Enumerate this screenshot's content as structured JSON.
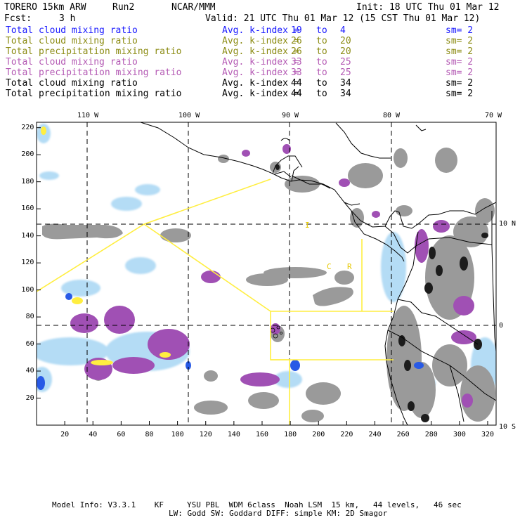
{
  "header": {
    "model": "TORERO",
    "resolution": "15km ARW",
    "run": "Run2",
    "org": "NCAR/MMM",
    "init": "Init: 18 UTC Thu 01 Mar 12",
    "fcst_label": "Fcst:",
    "fcst_value": "3 h",
    "valid": "Valid: 21 UTC Thu 01 Mar 12 (15 CST Thu 01 Mar 12)"
  },
  "legend": [
    {
      "name": "Total cloud mixing ratio",
      "avg": "Avg. k-index =",
      "a": "19",
      "to": "to",
      "b": "4",
      "sm": "sm= 2",
      "color": "#1a1aff"
    },
    {
      "name": "Total cloud mixing ratio",
      "avg": "Avg. k-index =",
      "a": "26",
      "to": "to",
      "b": "20",
      "sm": "sm= 2",
      "color": "#8c8c14"
    },
    {
      "name": "Total precipitation mixing ratio",
      "avg": "Avg. k-index =",
      "a": "26",
      "to": "to",
      "b": "20",
      "sm": "sm= 2",
      "color": "#8c8c14"
    },
    {
      "name": "Total cloud mixing ratio",
      "avg": "Avg. k-index =",
      "a": "33",
      "to": "to",
      "b": "25",
      "sm": "sm= 2",
      "color": "#b45ab4"
    },
    {
      "name": "Total precipitation mixing ratio",
      "avg": "Avg. k-index =",
      "a": "33",
      "to": "to",
      "b": "25",
      "sm": "sm= 2",
      "color": "#b45ab4"
    },
    {
      "name": "Total cloud mixing ratio",
      "avg": "Avg. k-index =",
      "a": "44",
      "to": "to",
      "b": "34",
      "sm": "sm= 2",
      "color": "#000000"
    },
    {
      "name": "Total precipitation mixing ratio",
      "avg": "Avg. k-index =",
      "a": "44",
      "to": "to",
      "b": "34",
      "sm": "sm= 2",
      "color": "#000000"
    }
  ],
  "map": {
    "lon_labels": [
      "110 W",
      "100 W",
      "90 W",
      "80 W",
      "70 W"
    ],
    "lat_labels": [
      "10 N",
      "0",
      "10 S"
    ],
    "x_ticks": [
      "20",
      "40",
      "60",
      "80",
      "100",
      "120",
      "140",
      "160",
      "180",
      "200",
      "220",
      "240",
      "260",
      "280",
      "300",
      "320"
    ],
    "y_ticks": [
      "220",
      "200",
      "180",
      "160",
      "140",
      "120",
      "100",
      "80",
      "60",
      "40",
      "20"
    ],
    "domain_letters": [
      "I",
      "C",
      "R"
    ],
    "colors": {
      "cloud": "#9a9a9a",
      "cloud_dark": "#1c1c1c",
      "precip": "#a050b4",
      "light_blue": "#b4dcf5",
      "blue": "#285ae6",
      "yellow": "#ffee40"
    }
  },
  "footer": {
    "line1": "Model Info: V3.3.1    KF     YSU PBL  WDM 6class  Noah LSM  15 km,   44 levels,   46 sec",
    "line2": "LW: Godd SW: Goddard DIFF: simple KM: 2D Smagor"
  }
}
